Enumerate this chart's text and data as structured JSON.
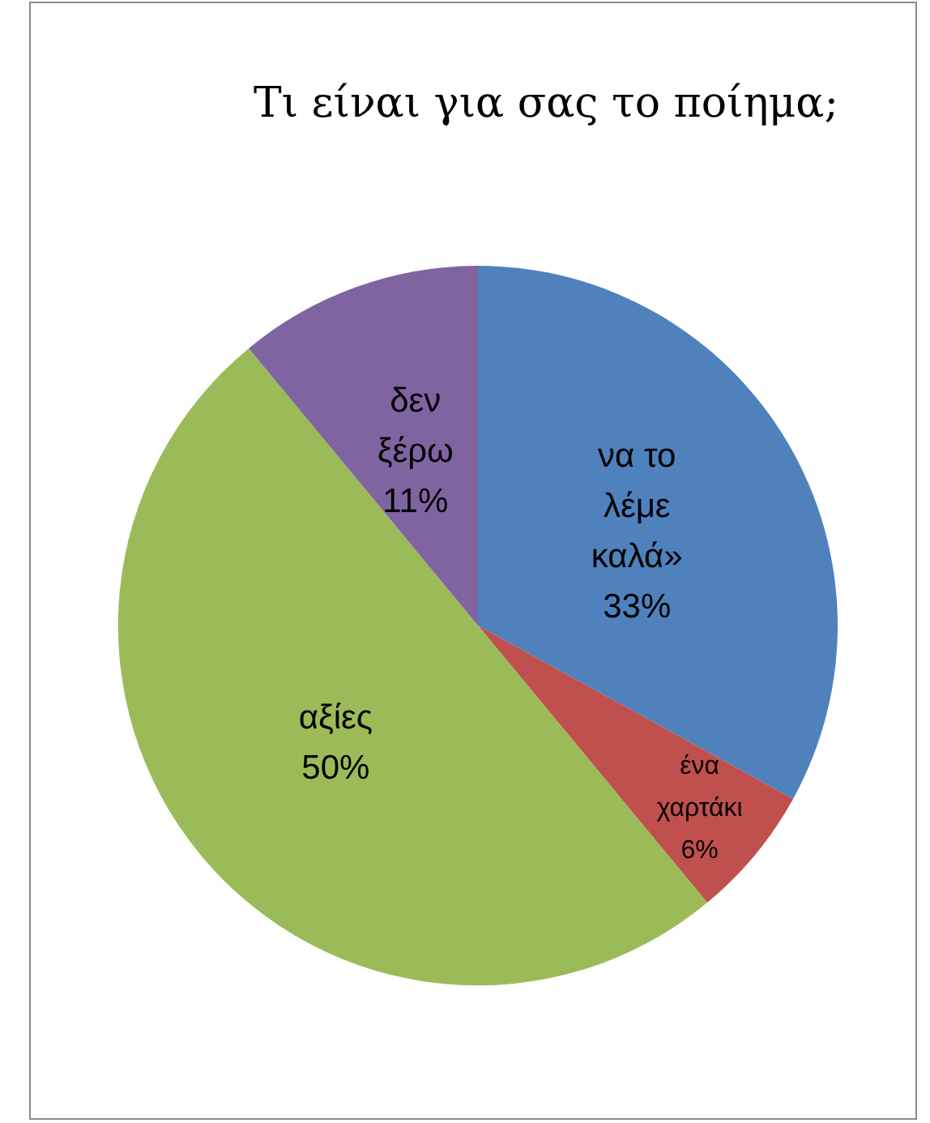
{
  "chart_data": {
    "type": "pie",
    "title": "Τι είναι για σας το ποίημα;",
    "categories": [
      "να το λέμε καλά»",
      "ένα χαρτάκι",
      "αξίες",
      "δεν ξέρω"
    ],
    "values": [
      33,
      6,
      50,
      11
    ],
    "colors": [
      "#4f81bd",
      "#c0504d",
      "#9bbb59",
      "#8064a2"
    ],
    "value_labels": [
      "33%",
      "6%",
      "50%",
      "11%"
    ]
  }
}
